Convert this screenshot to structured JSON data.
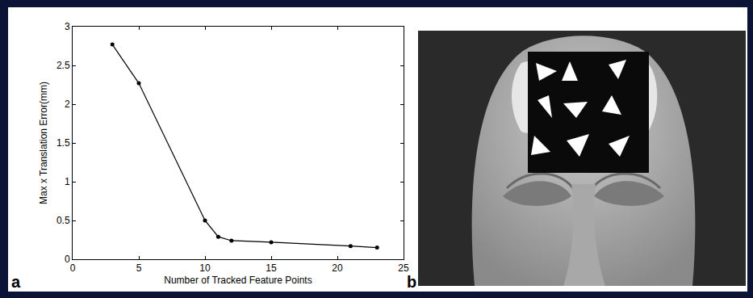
{
  "chart_data": {
    "type": "line",
    "panel_label": "a",
    "xlabel": "Number of Tracked Feature Points",
    "ylabel": "Max x Translation Error(mm)",
    "x": [
      3,
      5,
      10,
      11,
      12,
      15,
      21,
      23
    ],
    "values": [
      2.77,
      2.27,
      0.5,
      0.29,
      0.24,
      0.22,
      0.17,
      0.15
    ],
    "color": "#000000",
    "marker": "circle",
    "line_style": "solid",
    "xlim": [
      0,
      25
    ],
    "xticks": [
      0,
      5,
      10,
      15,
      20,
      25
    ],
    "ylim": [
      0,
      3
    ],
    "yticks": [
      0,
      0.5,
      1,
      1.5,
      2,
      2.5,
      3
    ],
    "grid": false
  },
  "photo": {
    "panel_label": "b"
  }
}
